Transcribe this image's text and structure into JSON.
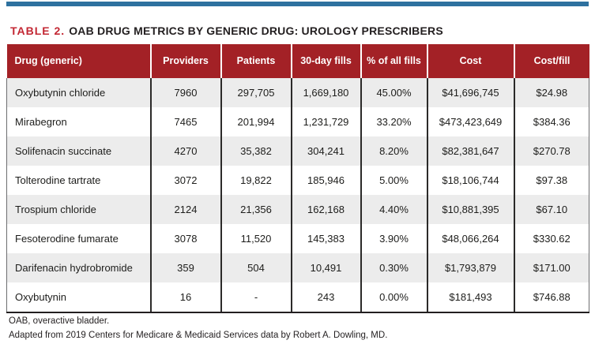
{
  "header": {
    "table_label": "TABLE 2.",
    "title": "OAB DRUG METRICS BY GENERIC DRUG: UROLOGY PRESCRIBERS"
  },
  "table": {
    "columns": [
      "Drug (generic)",
      "Providers",
      "Patients",
      "30-day fills",
      "% of all fills",
      "Cost",
      "Cost/fill"
    ],
    "rows": [
      [
        "Oxybutynin chloride",
        "7960",
        "297,705",
        "1,669,180",
        "45.00%",
        "$41,696,745",
        "$24.98"
      ],
      [
        "Mirabegron",
        "7465",
        "201,994",
        "1,231,729",
        "33.20%",
        "$473,423,649",
        "$384.36"
      ],
      [
        "Solifenacin succinate",
        "4270",
        "35,382",
        "304,241",
        "8.20%",
        "$82,381,647",
        "$270.78"
      ],
      [
        "Tolterodine tartrate",
        "3072",
        "19,822",
        "185,946",
        "5.00%",
        "$18,106,744",
        "$97.38"
      ],
      [
        "Trospium chloride",
        "2124",
        "21,356",
        "162,168",
        "4.40%",
        "$10,881,395",
        "$67.10"
      ],
      [
        "Fesoterodine fumarate",
        "3078",
        "11,520",
        "145,383",
        "3.90%",
        "$48,066,264",
        "$330.62"
      ],
      [
        "Darifenacin hydrobromide",
        "359",
        "504",
        "10,491",
        "0.30%",
        "$1,793,879",
        "$171.00"
      ],
      [
        "Oxybutynin",
        "16",
        "-",
        "243",
        "0.00%",
        "$181,493",
        "$746.88"
      ]
    ]
  },
  "footnotes": [
    "OAB, overactive bladder.",
    "Adapted from 2019 Centers for Medicare & Medicaid Services data by Robert A. Dowling, MD."
  ],
  "chart_data": {
    "type": "table",
    "title": "TABLE 2. OAB DRUG METRICS BY GENERIC DRUG: UROLOGY PRESCRIBERS",
    "columns": [
      "Drug (generic)",
      "Providers",
      "Patients",
      "30-day fills",
      "% of all fills",
      "Cost",
      "Cost/fill"
    ],
    "rows": [
      [
        "Oxybutynin chloride",
        7960,
        297705,
        1669180,
        "45.00%",
        "$41,696,745",
        "$24.98"
      ],
      [
        "Mirabegron",
        7465,
        201994,
        1231729,
        "33.20%",
        "$473,423,649",
        "$384.36"
      ],
      [
        "Solifenacin succinate",
        4270,
        35382,
        304241,
        "8.20%",
        "$82,381,647",
        "$270.78"
      ],
      [
        "Tolterodine tartrate",
        3072,
        19822,
        185946,
        "5.00%",
        "$18,106,744",
        "$97.38"
      ],
      [
        "Trospium chloride",
        2124,
        21356,
        162168,
        "4.40%",
        "$10,881,395",
        "$67.10"
      ],
      [
        "Fesoterodine fumarate",
        3078,
        11520,
        145383,
        "3.90%",
        "$48,066,264",
        "$330.62"
      ],
      [
        "Darifenacin hydrobromide",
        359,
        504,
        10491,
        "0.30%",
        "$1,793,879",
        "$171.00"
      ],
      [
        "Oxybutynin",
        16,
        null,
        243,
        "0.00%",
        "$181,493",
        "$746.88"
      ]
    ]
  },
  "colors": {
    "accent_blue": "#2e719f",
    "header_red": "#a32126",
    "title_red": "#c32733",
    "row_alt_gray": "#ececec",
    "text_dark": "#231f20"
  }
}
